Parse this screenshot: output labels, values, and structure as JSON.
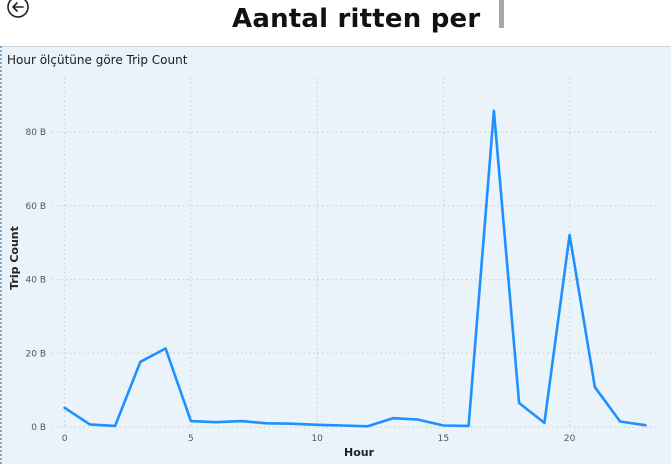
{
  "header": {
    "title": "Aantal ritten per"
  },
  "icons": {
    "back": "back-arrow-icon"
  },
  "visual": {
    "title": "Hour ölçütüne göre Trip Count"
  },
  "colors": {
    "line": "#1e90ff",
    "plot_bg": "#eaf3fa",
    "grid": "#c5ccd3"
  },
  "chart_data": {
    "type": "line",
    "title": "Hour ölçütüne göre Trip Count",
    "xlabel": "Hour",
    "ylabel": "Trip Count",
    "x": [
      0,
      1,
      2,
      3,
      4,
      5,
      6,
      7,
      8,
      9,
      10,
      11,
      12,
      13,
      14,
      15,
      16,
      17,
      18,
      19,
      20,
      21,
      22,
      23
    ],
    "series": [
      {
        "values": [
          5.2,
          0.7,
          0.3,
          17.7,
          21.3,
          1.6,
          1.3,
          1.6,
          1.0,
          0.9,
          0.6,
          0.4,
          0.2,
          2.4,
          2.0,
          0.4,
          0.3,
          85.8,
          6.5,
          1.1,
          52.1,
          10.8,
          1.5,
          0.5
        ]
      }
    ],
    "xlim": [
      -0.5,
      23.5
    ],
    "ylim": [
      0,
      92
    ],
    "xticks": [
      0,
      5,
      10,
      15,
      20
    ],
    "xtick_labels": [
      "0",
      "5",
      "10",
      "15",
      "20"
    ],
    "yticks": [
      0,
      20,
      40,
      60,
      80
    ],
    "ytick_labels": [
      "0 B",
      "20 B",
      "40 B",
      "60 B",
      "80 B"
    ],
    "grid": true,
    "legend": "none"
  }
}
